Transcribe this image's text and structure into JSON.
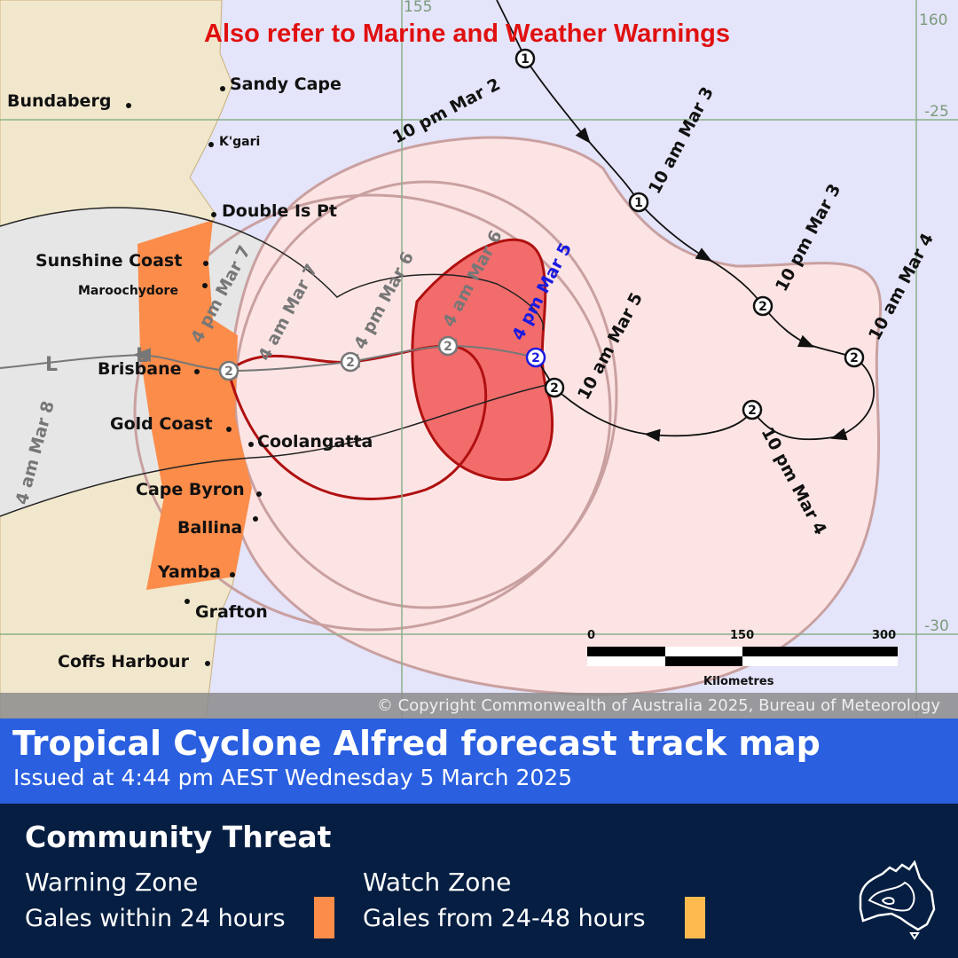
{
  "map": {
    "warning_banner": "Also refer to Marine and Weather Warnings",
    "grid_labels": {
      "lon_155": "155",
      "lon_160": "160",
      "lat_25": "-25",
      "lat_30": "-30"
    },
    "places": {
      "bundaberg": "Bundaberg",
      "sandy_cape": "Sandy Cape",
      "kgari": "K'gari",
      "double_is_pt": "Double Is Pt",
      "sunshine_coast": "Sunshine Coast",
      "maroochydore": "Maroochydore",
      "brisbane": "Brisbane",
      "gold_coast": "Gold Coast",
      "coolangatta": "Coolangatta",
      "cape_byron": "Cape Byron",
      "ballina": "Ballina",
      "yamba": "Yamba",
      "grafton": "Grafton",
      "coffs_harbour": "Coffs Harbour"
    },
    "track_labels": {
      "t1": "10 pm Mar 2",
      "t2": "10 am Mar 3",
      "t3": "10 pm Mar 3",
      "t4": "10 am Mar 4",
      "t5": "10 pm Mar 4",
      "t6": "10 am Mar 5",
      "t7": "4 pm Mar 5",
      "t8": "4 am Mar 6",
      "t9": "4 pm Mar 6",
      "t10": "4 am Mar 7",
      "t11": "4 pm Mar 7",
      "t12": "4 am Mar 8"
    },
    "category_markers": {
      "cat1": "1",
      "cat2": "2",
      "low": "L"
    },
    "scale": {
      "zero": "0",
      "mid": "150",
      "max": "300",
      "unit": "Kilometres"
    },
    "copyright": "© Copyright Commonwealth of Australia 2025, Bureau of Meteorology",
    "colors": {
      "ocean": "#e4e4fa",
      "land": "#f1e7cc",
      "warning_zone": "#fb8c4a",
      "watch_zone": "#fdbb4f",
      "very_destructive_zone": "#f26c6c",
      "forecast_area": "#fde4e4",
      "current_position": "#1a1ae0"
    }
  },
  "header": {
    "title": "Tropical Cyclone Alfred forecast track map",
    "issued": "Issued at 4:44 pm AEST Wednesday 5 March 2025"
  },
  "legend": {
    "title": "Community Threat",
    "warning": {
      "heading": "Warning Zone",
      "desc": "Gales within 24 hours",
      "color": "#fb8c4a"
    },
    "watch": {
      "heading": "Watch Zone",
      "desc": "Gales from 24-48 hours",
      "color": "#fdbb4f"
    },
    "logo_icon": "australia-map-icon"
  }
}
